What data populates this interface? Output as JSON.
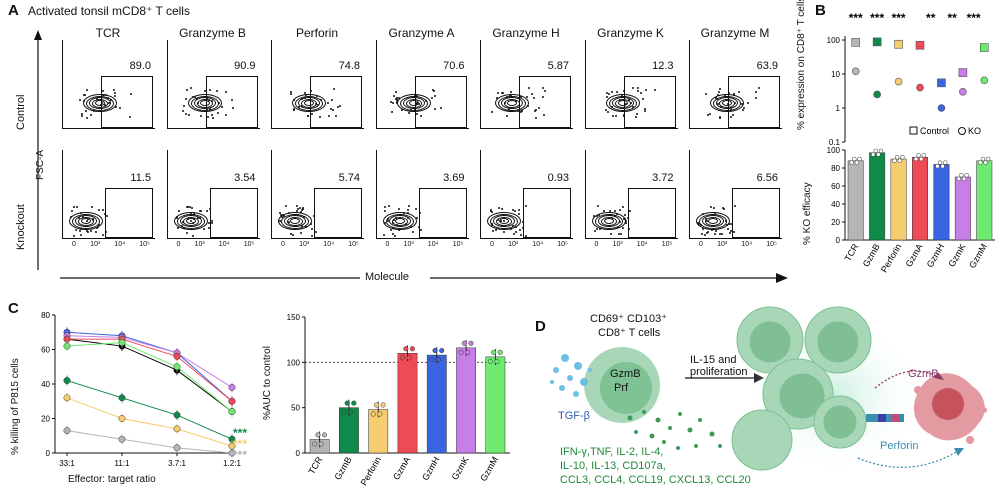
{
  "panelA": {
    "letter": "A",
    "title": "Activated tonsil mCD8⁺ T cells",
    "columns": [
      "TCR",
      "Granzyme B",
      "Perforin",
      "Granzyme A",
      "Granzyme H",
      "Granzyme K",
      "Granzyme M"
    ],
    "row_labels": [
      "Control",
      "Knockout"
    ],
    "y_axis": "FSC-A",
    "x_axis": "Molecule",
    "control_values": [
      "89.0",
      "90.9",
      "74.8",
      "70.6",
      "5.87",
      "12.3",
      "63.9"
    ],
    "knockout_values": [
      "11.5",
      "3.54",
      "5.74",
      "3.69",
      "0.93",
      "3.72",
      "6.56"
    ],
    "ticks": [
      "0",
      "10³",
      "10⁴",
      "10⁵"
    ]
  },
  "panelB": {
    "letter": "B",
    "top_ylabel": "% expression on CD8⁺ T cells",
    "bottom_ylabel": "% KO efficacy",
    "top_ticks": [
      "100",
      "10",
      "1",
      "0.1"
    ],
    "bottom_ticks": [
      "100",
      "80",
      "60",
      "40",
      "20",
      "0"
    ],
    "stars": [
      "***",
      "***",
      "***",
      "**",
      "**",
      "***"
    ],
    "legend_control": "Control",
    "legend_ko": "KO",
    "categories": [
      "TCR",
      "GzmB",
      "Perforin",
      "GzmA",
      "GzmH",
      "GzmK",
      "GzmM"
    ],
    "colors": [
      "#b5b5b5",
      "#0f8a4a",
      "#f5cd6e",
      "#ee4b57",
      "#3b64e0",
      "#c77ee6",
      "#6fea70"
    ]
  },
  "panelC": {
    "letter": "C",
    "ylabel": "% killing of P815 cells",
    "xlabel": "Effector: target ratio",
    "xticks": [
      "33:1",
      "11:1",
      "3.7:1",
      "1.2:1"
    ],
    "yticks": [
      "80",
      "60",
      "40",
      "20",
      "0"
    ],
    "stars": [
      "***",
      "***",
      "***"
    ],
    "auc_ylabel": "%AUC to control",
    "auc_yticks": [
      "150",
      "100",
      "50",
      "0"
    ]
  },
  "panelD": {
    "letter": "D",
    "cell_label_1": "CD69⁺ CD103⁺",
    "cell_label_2": "CD8⁺ T cells",
    "gzmb": "GzmB",
    "prf": "Prf",
    "tgf": "TGF-β",
    "arrow_label_1": "IL-15 and",
    "arrow_label_2": "proliferation",
    "cytokines_1": "IFN-γ,TNF, IL-2, IL-4,",
    "cytokines_2": "IL-10, IL-13, CD107a,",
    "cytokines_3": "CCL3, CCL4, CCL19, CXCL13, CCL20",
    "right_gzmb": "GzmB",
    "right_perforin": "Perforin"
  },
  "chart_data": [
    {
      "type": "bar",
      "title": "",
      "ylabel": "% expression on CD8⁺ T cells",
      "yscale": "log",
      "ylim": [
        0.1,
        100
      ],
      "categories": [
        "TCR",
        "GzmB",
        "Perforin",
        "GzmA",
        "GzmH",
        "GzmK",
        "GzmM"
      ],
      "series": [
        {
          "name": "Control",
          "values": [
            85,
            88,
            75,
            70,
            5.5,
            11,
            60
          ]
        },
        {
          "name": "KO",
          "values": [
            12,
            2.5,
            6,
            4,
            1,
            3,
            6.5
          ]
        }
      ]
    },
    {
      "type": "bar",
      "title": "",
      "ylabel": "% KO efficacy",
      "ylim": [
        0,
        100
      ],
      "categories": [
        "TCR",
        "GzmB",
        "Perforin",
        "GzmA",
        "GzmH",
        "GzmK",
        "GzmM"
      ],
      "values": [
        88,
        97,
        90,
        92,
        84,
        70,
        88
      ]
    },
    {
      "type": "line",
      "title": "",
      "xlabel": "Effector: target ratio",
      "ylabel": "% killing of P815 cells",
      "ylim": [
        0,
        80
      ],
      "categories": [
        "33:1",
        "11:1",
        "3.7:1",
        "1.2:1"
      ],
      "series": [
        {
          "color": "#000000",
          "values": [
            66,
            62,
            48,
            24
          ]
        },
        {
          "color": "#3b64e0",
          "values": [
            70,
            68,
            58,
            30
          ]
        },
        {
          "color": "#c77ee6",
          "values": [
            68,
            67,
            58,
            38
          ]
        },
        {
          "color": "#ee4b57",
          "values": [
            66,
            66,
            56,
            30
          ]
        },
        {
          "color": "#6fea70",
          "values": [
            62,
            64,
            50,
            24
          ]
        },
        {
          "color": "#0f8a4a",
          "values": [
            42,
            32,
            22,
            8
          ]
        },
        {
          "color": "#f5cd6e",
          "values": [
            32,
            20,
            14,
            4
          ]
        },
        {
          "color": "#b5b5b5",
          "values": [
            13,
            8,
            3,
            0
          ]
        }
      ]
    },
    {
      "type": "bar",
      "title": "",
      "ylabel": "%AUC to control",
      "ylim": [
        0,
        150
      ],
      "categories": [
        "TCR",
        "GzmB",
        "Perforin",
        "GzmA",
        "GzmH",
        "GzmK",
        "GzmM"
      ],
      "values": [
        15,
        50,
        48,
        110,
        108,
        116,
        106
      ]
    }
  ]
}
